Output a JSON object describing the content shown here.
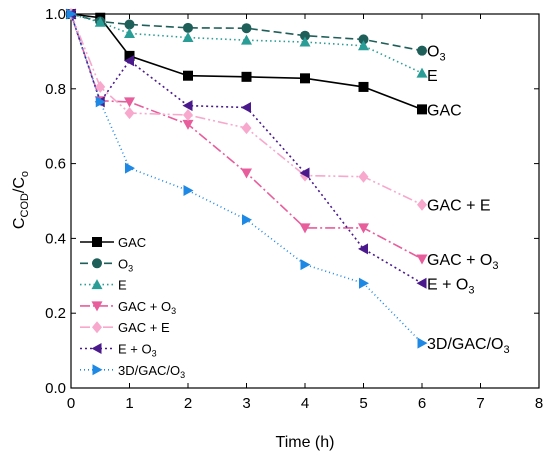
{
  "chart_data": {
    "type": "line",
    "xlabel": "Time (h)",
    "ylabel_main": "C",
    "ylabel_sub1": "COD",
    "ylabel_mid": "/C",
    "ylabel_sub2": "o",
    "xlim": [
      0,
      8
    ],
    "ylim": [
      0,
      1.0
    ],
    "xticks": [
      "0",
      "1",
      "2",
      "3",
      "4",
      "5",
      "6",
      "7",
      "8"
    ],
    "yticks": [
      "0.0",
      "0.2",
      "0.4",
      "0.6",
      "0.8",
      "1.0"
    ],
    "grid": false,
    "legend_placement": "bottom-left",
    "series": [
      {
        "name": "GAC",
        "end_label": "GAC",
        "color": "#000000",
        "marker": "square",
        "dash": "",
        "x": [
          0,
          0.5,
          1,
          2,
          3,
          4,
          5,
          6
        ],
        "y": [
          1.0,
          0.99,
          0.888,
          0.835,
          0.832,
          0.828,
          0.805,
          0.745
        ]
      },
      {
        "name": "O3",
        "name_base": "O",
        "name_sub": "3",
        "end_label": "O3",
        "end_label_base": "O",
        "end_label_sub": "3",
        "color": "#1f5f5a",
        "marker": "circle",
        "dash": "8,4",
        "x": [
          0,
          0.5,
          1,
          2,
          3,
          4,
          5,
          6
        ],
        "y": [
          1.0,
          0.98,
          0.972,
          0.963,
          0.962,
          0.942,
          0.932,
          0.902
        ]
      },
      {
        "name": "E",
        "end_label": "E",
        "color": "#2a9d96",
        "marker": "triangle-up",
        "dash": "1.5,3",
        "x": [
          0,
          0.5,
          1,
          2,
          3,
          4,
          5,
          6
        ],
        "y": [
          1.0,
          0.978,
          0.948,
          0.937,
          0.93,
          0.925,
          0.915,
          0.842
        ]
      },
      {
        "name": "GAC + O3",
        "name_base": "GAC + O",
        "name_sub": "3",
        "end_label": "GAC + O3",
        "end_label_base": "GAC + O",
        "end_label_sub": "3",
        "color": "#e85d9c",
        "marker": "triangle-down",
        "dash": "10,3,2,3",
        "x": [
          0,
          0.5,
          1,
          2,
          3,
          4,
          5,
          6
        ],
        "y": [
          1.0,
          0.768,
          0.765,
          0.705,
          0.575,
          0.428,
          0.428,
          0.345
        ]
      },
      {
        "name": "GAC + E",
        "end_label": "GAC + E",
        "color": "#f7a8cc",
        "marker": "diamond",
        "dash": "10,3,2,3,2,3",
        "x": [
          0,
          0.5,
          1,
          2,
          3,
          4,
          5,
          6
        ],
        "y": [
          1.0,
          0.805,
          0.735,
          0.73,
          0.695,
          0.568,
          0.565,
          0.49
        ]
      },
      {
        "name": "E + O3",
        "name_base": "E + O",
        "name_sub": "3",
        "end_label": "E + O3",
        "end_label_base": "E + O",
        "end_label_sub": "3",
        "color": "#4a1a8c",
        "marker": "triangle-left",
        "dash": "2,3",
        "x": [
          0,
          0.5,
          1,
          2,
          3,
          4,
          5,
          6
        ],
        "y": [
          1.0,
          0.765,
          0.875,
          0.755,
          0.75,
          0.575,
          0.372,
          0.28
        ]
      },
      {
        "name": "3D/GAC/O3",
        "name_base": "3D/GAC/O",
        "name_sub": "3",
        "end_label": "3D/GAC/O3",
        "end_label_base": "3D/GAC/O",
        "end_label_sub": "3",
        "color": "#1e88e5",
        "marker": "triangle-right",
        "dash": "1,3",
        "x": [
          0,
          0.5,
          1,
          2,
          3,
          4,
          5,
          6
        ],
        "y": [
          1.0,
          0.765,
          0.588,
          0.528,
          0.45,
          0.33,
          0.28,
          0.12
        ]
      }
    ]
  }
}
